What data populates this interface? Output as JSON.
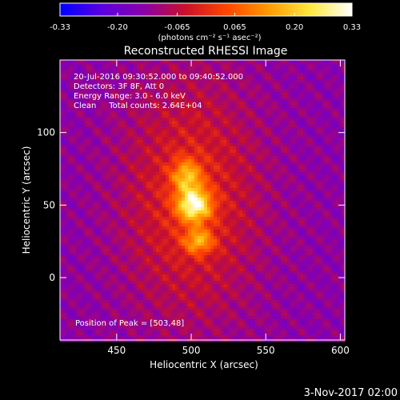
{
  "colorbar": {
    "tick_labels": [
      "-0.33",
      "-0.20",
      "-0.065",
      "0.065",
      "0.20",
      "0.33"
    ],
    "tick_values": [
      -0.33,
      -0.2,
      -0.065,
      0.065,
      0.2,
      0.33
    ],
    "range": [
      -0.33,
      0.33
    ],
    "unit_label": "(photons cm⁻² s⁻¹ asec⁻²)",
    "colors": [
      "#0000ff",
      "#5a00e0",
      "#8a00a8",
      "#c8102a",
      "#ff4500",
      "#ff9a00",
      "#ffe840",
      "#ffffff"
    ]
  },
  "plot": {
    "title": "Reconstructed RHESSI Image",
    "info_lines": [
      "20-Jul-2016 09:30:52.000 to 09:40:52.000",
      "Detectors: 3F 8F, Att 0",
      "Energy Range: 3.0 - 6.0 keV",
      "Clean     Total counts: 2.64E+04"
    ],
    "peak_label": "Position of Peak = [503,48]"
  },
  "footer_timestamp": "3-Nov-2017 02:00",
  "chart_data": {
    "type": "heatmap",
    "title": "Reconstructed RHESSI Image",
    "xlabel": "Heliocentric X (arcsec)",
    "ylabel": "Heliocentric Y (arcsec)",
    "xlim": [
      412,
      603
    ],
    "ylim": [
      -43,
      150
    ],
    "x_ticks": [
      450,
      500,
      550,
      600
    ],
    "y_ticks": [
      0,
      50,
      100
    ],
    "x_tick_labels": [
      "450",
      "500",
      "550",
      "600"
    ],
    "y_tick_labels": [
      "0",
      "50",
      "100"
    ],
    "color_range": [
      -0.33,
      0.33
    ],
    "colormap": "blue-purple-red-orange-yellow-white",
    "peak_position": [
      503,
      48
    ],
    "sources": [
      {
        "x": 502,
        "y": 50,
        "sx": 8,
        "sy": 8,
        "amp": 0.33
      },
      {
        "x": 505,
        "y": 25,
        "sx": 7,
        "sy": 6,
        "amp": 0.2
      },
      {
        "x": 497,
        "y": 70,
        "sx": 7,
        "sy": 8,
        "amp": 0.2
      },
      {
        "x": 500,
        "y": 55,
        "sx": 32,
        "sy": 58,
        "amp": 0.14
      }
    ],
    "background_level": -0.14,
    "grid": false
  }
}
